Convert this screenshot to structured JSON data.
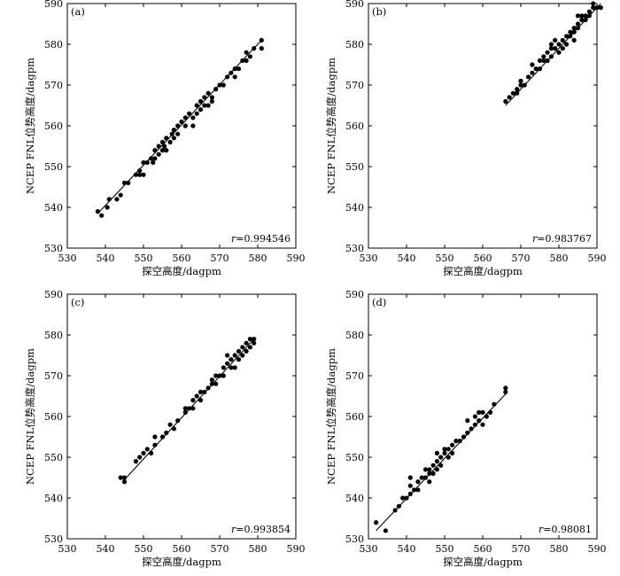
{
  "chart_data": [
    {
      "type": "scatter",
      "panel_label": "(a)",
      "xlabel": "探空高度/dagpm",
      "ylabel": "NCEP FNL位势高度/dagpm",
      "xlim": [
        530,
        590
      ],
      "ylim": [
        530,
        590
      ],
      "xticks": [
        530,
        540,
        550,
        560,
        570,
        580,
        590
      ],
      "yticks": [
        530,
        540,
        550,
        560,
        570,
        580,
        590
      ],
      "r_prefix": "r",
      "r_value": "=0.994546",
      "fit_line": [
        [
          538,
          538.5
        ],
        [
          581,
          581
        ]
      ],
      "points": [
        [
          538,
          539
        ],
        [
          539,
          538
        ],
        [
          540.5,
          540
        ],
        [
          541,
          542
        ],
        [
          543,
          542
        ],
        [
          544,
          543
        ],
        [
          545,
          546
        ],
        [
          546,
          546
        ],
        [
          548,
          548
        ],
        [
          549,
          549
        ],
        [
          549,
          548
        ],
        [
          550,
          548
        ],
        [
          550,
          551
        ],
        [
          551,
          551
        ],
        [
          552,
          552
        ],
        [
          552.5,
          551
        ],
        [
          553,
          552
        ],
        [
          553,
          554
        ],
        [
          554,
          553
        ],
        [
          554,
          555
        ],
        [
          555,
          554
        ],
        [
          555,
          556
        ],
        [
          555.5,
          555
        ],
        [
          556,
          557
        ],
        [
          556,
          554
        ],
        [
          557,
          556
        ],
        [
          557.5,
          558
        ],
        [
          558,
          557
        ],
        [
          558,
          559
        ],
        [
          559,
          560
        ],
        [
          559,
          558
        ],
        [
          560,
          561
        ],
        [
          561,
          560
        ],
        [
          561,
          562
        ],
        [
          562,
          563
        ],
        [
          563,
          562
        ],
        [
          563,
          560
        ],
        [
          564,
          563
        ],
        [
          564,
          565
        ],
        [
          565,
          564
        ],
        [
          565,
          566
        ],
        [
          566,
          565
        ],
        [
          566,
          567
        ],
        [
          567,
          565
        ],
        [
          567,
          568
        ],
        [
          568,
          566
        ],
        [
          568,
          567
        ],
        [
          569,
          569
        ],
        [
          570,
          570
        ],
        [
          571,
          570
        ],
        [
          572,
          572
        ],
        [
          573,
          573
        ],
        [
          574,
          572
        ],
        [
          574,
          574
        ],
        [
          575,
          574
        ],
        [
          576,
          576
        ],
        [
          577,
          576
        ],
        [
          577,
          578
        ],
        [
          578,
          577
        ],
        [
          579,
          579
        ],
        [
          581,
          581
        ],
        [
          581,
          579
        ]
      ]
    },
    {
      "type": "scatter",
      "panel_label": "(b)",
      "xlabel": "探空高度/dagpm",
      "ylabel": "NCEP FNL位势高度/dagpm",
      "xlim": [
        530,
        590
      ],
      "ylim": [
        530,
        590
      ],
      "xticks": [
        530,
        540,
        550,
        560,
        570,
        580,
        590
      ],
      "yticks": [
        530,
        540,
        550,
        560,
        570,
        580,
        590
      ],
      "r_prefix": "r",
      "r_value": "=0.983767",
      "fit_line": [
        [
          566,
          565
        ],
        [
          591,
          590
        ]
      ],
      "points": [
        [
          566,
          566
        ],
        [
          567,
          567
        ],
        [
          568,
          568
        ],
        [
          569,
          568
        ],
        [
          569,
          569
        ],
        [
          570,
          570
        ],
        [
          570,
          571
        ],
        [
          571,
          570
        ],
        [
          572,
          572
        ],
        [
          573,
          573
        ],
        [
          573,
          575
        ],
        [
          574,
          574
        ],
        [
          575,
          574
        ],
        [
          575,
          576
        ],
        [
          576,
          577
        ],
        [
          576,
          576
        ],
        [
          577,
          578
        ],
        [
          577,
          576
        ],
        [
          578,
          579
        ],
        [
          578,
          577
        ],
        [
          578,
          580
        ],
        [
          579,
          579
        ],
        [
          579,
          581
        ],
        [
          580,
          580
        ],
        [
          580,
          578
        ],
        [
          581,
          581
        ],
        [
          581,
          579
        ],
        [
          582,
          582
        ],
        [
          582,
          580
        ],
        [
          583,
          583
        ],
        [
          583,
          582
        ],
        [
          584,
          584
        ],
        [
          584,
          583
        ],
        [
          584,
          581
        ],
        [
          585,
          585
        ],
        [
          585,
          584
        ],
        [
          585,
          587
        ],
        [
          586,
          586
        ],
        [
          586,
          587
        ],
        [
          587,
          587
        ],
        [
          587,
          586
        ],
        [
          588,
          588
        ],
        [
          588,
          587
        ],
        [
          589,
          589
        ],
        [
          589,
          590
        ],
        [
          590,
          589
        ],
        [
          591,
          589
        ]
      ]
    },
    {
      "type": "scatter",
      "panel_label": "(c)",
      "xlabel": "探空高度/dagpm",
      "ylabel": "NCEP FNL位势高度/dagpm",
      "xlim": [
        530,
        590
      ],
      "ylim": [
        530,
        590
      ],
      "xticks": [
        530,
        540,
        550,
        560,
        570,
        580,
        590
      ],
      "yticks": [
        530,
        540,
        550,
        560,
        570,
        580,
        590
      ],
      "r_prefix": "r",
      "r_value": "=0.993854",
      "fit_line": [
        [
          545,
          544.5
        ],
        [
          579,
          579
        ]
      ],
      "points": [
        [
          544,
          545
        ],
        [
          545,
          544
        ],
        [
          545,
          545
        ],
        [
          548,
          549
        ],
        [
          549,
          550
        ],
        [
          550,
          551
        ],
        [
          551,
          552
        ],
        [
          552,
          551
        ],
        [
          553,
          555
        ],
        [
          553,
          553
        ],
        [
          555,
          555
        ],
        [
          556,
          556
        ],
        [
          557,
          558
        ],
        [
          558,
          557
        ],
        [
          559,
          559
        ],
        [
          561,
          561
        ],
        [
          561,
          562
        ],
        [
          562,
          562
        ],
        [
          563,
          562
        ],
        [
          563,
          564
        ],
        [
          564,
          565
        ],
        [
          565,
          566
        ],
        [
          565,
          564
        ],
        [
          566,
          566
        ],
        [
          567,
          567
        ],
        [
          568,
          568
        ],
        [
          568,
          569
        ],
        [
          569,
          568
        ],
        [
          569,
          570
        ],
        [
          570,
          570
        ],
        [
          571,
          572
        ],
        [
          571,
          570
        ],
        [
          572,
          575
        ],
        [
          572,
          573
        ],
        [
          573,
          572
        ],
        [
          573,
          574
        ],
        [
          574,
          575
        ],
        [
          574,
          572
        ],
        [
          575,
          576
        ],
        [
          575,
          574
        ],
        [
          576,
          577
        ],
        [
          576,
          575
        ],
        [
          577,
          578
        ],
        [
          577,
          576
        ],
        [
          578,
          579
        ],
        [
          578,
          577
        ],
        [
          579,
          578
        ],
        [
          579,
          579
        ]
      ]
    },
    {
      "type": "scatter",
      "panel_label": "(d)",
      "xlabel": "探空高度/dagpm",
      "ylabel": "NCEP FNL位势高度/dagpm",
      "xlim": [
        530,
        590
      ],
      "ylim": [
        530,
        590
      ],
      "xticks": [
        530,
        540,
        550,
        560,
        570,
        580,
        590
      ],
      "yticks": [
        530,
        540,
        550,
        560,
        570,
        580,
        590
      ],
      "r_prefix": "r",
      "r_value": "=0.98081",
      "fit_line": [
        [
          532,
          532
        ],
        [
          566,
          565.5
        ]
      ],
      "points": [
        [
          532,
          534
        ],
        [
          534.5,
          532
        ],
        [
          537,
          537
        ],
        [
          538,
          538
        ],
        [
          539,
          540
        ],
        [
          540,
          540
        ],
        [
          541,
          545
        ],
        [
          541,
          543
        ],
        [
          541,
          541
        ],
        [
          542,
          542
        ],
        [
          543,
          542
        ],
        [
          543,
          544
        ],
        [
          544,
          545
        ],
        [
          545,
          547
        ],
        [
          545,
          545
        ],
        [
          546,
          546
        ],
        [
          546,
          544
        ],
        [
          546,
          547
        ],
        [
          547,
          548
        ],
        [
          547,
          546
        ],
        [
          548,
          549
        ],
        [
          548,
          547
        ],
        [
          548,
          551
        ],
        [
          549,
          548
        ],
        [
          549,
          550
        ],
        [
          550,
          551
        ],
        [
          550,
          552
        ],
        [
          551,
          552
        ],
        [
          551,
          550
        ],
        [
          552,
          551
        ],
        [
          552,
          553
        ],
        [
          553,
          554
        ],
        [
          554,
          554
        ],
        [
          555,
          555
        ],
        [
          556,
          556
        ],
        [
          556,
          559
        ],
        [
          557,
          557
        ],
        [
          558,
          558
        ],
        [
          558,
          560
        ],
        [
          559,
          559
        ],
        [
          559,
          561
        ],
        [
          560,
          561
        ],
        [
          560,
          558
        ],
        [
          561,
          560
        ],
        [
          562,
          561
        ],
        [
          563,
          563
        ],
        [
          566,
          567
        ],
        [
          566,
          566
        ]
      ]
    }
  ]
}
